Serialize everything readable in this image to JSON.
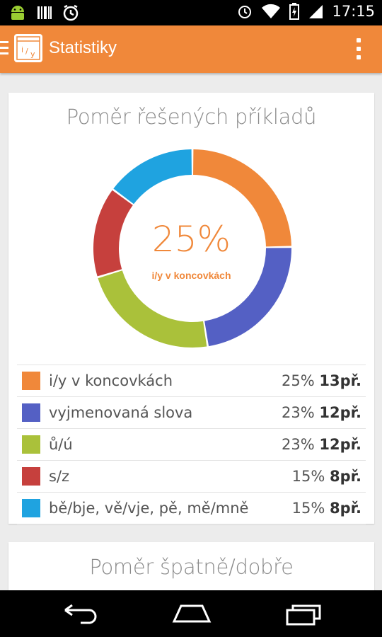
{
  "status_bar": {
    "time": "17:15",
    "left_icons": [
      "android-icon",
      "barcode-icon",
      "sync-icon"
    ],
    "right_icons": [
      "alarm-icon",
      "wifi-icon",
      "battery-charging-icon",
      "signal-icon"
    ]
  },
  "action_bar": {
    "title": "Statistiky",
    "app_icon_text": "i/y",
    "accent_color": "#f0883a"
  },
  "card_solved": {
    "title": "Poměr řešených příkladů",
    "center_percent": "25%",
    "center_label": "i/y v koncovkách"
  },
  "legend": [
    {
      "label": "i/y v koncovkách",
      "percent": "25%",
      "count": "13př.",
      "color": "#f0883a"
    },
    {
      "label": "vyjmenovaná slova",
      "percent": "23%",
      "count": "12př.",
      "color": "#5460c4"
    },
    {
      "label": "ů/ú",
      "percent": "23%",
      "count": "12př.",
      "color": "#aac13a"
    },
    {
      "label": "s/z",
      "percent": "15%",
      "count": "8př.",
      "color": "#c6403d"
    },
    {
      "label": "bě/bje, vě/vje, pě, mě/mně",
      "percent": "15%",
      "count": "8př.",
      "color": "#1fa3e0"
    }
  ],
  "card_wrong": {
    "title": "Poměr špatně/dobře"
  },
  "nav_bar": {
    "buttons": [
      "back-icon",
      "home-icon",
      "recents-icon"
    ]
  },
  "chart_data": {
    "type": "pie",
    "title": "Poměr řešených příkladů",
    "categories": [
      "i/y v koncovkách",
      "vyjmenovaná slova",
      "ů/ú",
      "s/z",
      "bě/bje, vě/vje, pě, mě/mně"
    ],
    "values": [
      25,
      23,
      23,
      15,
      15
    ],
    "counts": [
      13,
      12,
      12,
      8,
      8
    ],
    "colors": [
      "#f0883a",
      "#5460c4",
      "#aac13a",
      "#c6403d",
      "#1fa3e0"
    ],
    "style": "donut"
  }
}
